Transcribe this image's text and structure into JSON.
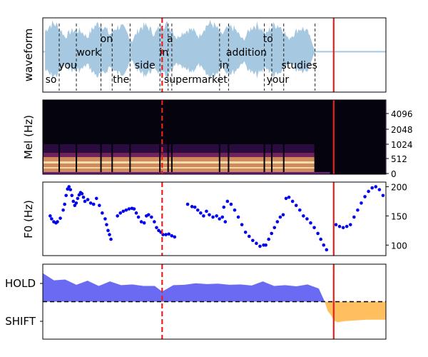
{
  "chart_data": [
    {
      "type": "area",
      "panel": "waveform",
      "ylabel": "waveform",
      "color": "#a6c8e0",
      "words": [
        {
          "word": "so",
          "row": "low",
          "start": 0.0,
          "end": 0.22
        },
        {
          "word": "you",
          "row": "mid-low",
          "start": 0.22,
          "end": 0.45
        },
        {
          "word": "work",
          "row": "mid",
          "start": 0.45,
          "end": 0.78
        },
        {
          "word": "on",
          "row": "top",
          "start": 0.78,
          "end": 0.93
        },
        {
          "word": "the",
          "row": "low",
          "start": 0.93,
          "end": 1.17
        },
        {
          "word": "side",
          "row": "mid-low",
          "start": 1.17,
          "end": 1.57
        },
        {
          "word": "in",
          "row": "mid",
          "start": 1.57,
          "end": 1.68
        },
        {
          "word": "a",
          "row": "top",
          "start": 1.68,
          "end": 1.73
        },
        {
          "word": "supermarket",
          "row": "low",
          "start": 1.73,
          "end": 2.37
        },
        {
          "word": "in",
          "row": "mid-low",
          "start": 2.37,
          "end": 2.49
        },
        {
          "word": "addition",
          "row": "mid",
          "start": 2.49,
          "end": 2.97
        },
        {
          "word": "to",
          "row": "top",
          "start": 2.97,
          "end": 3.07
        },
        {
          "word": "your",
          "row": "low",
          "start": 3.07,
          "end": 3.23
        },
        {
          "word": "studies",
          "row": "mid-low",
          "start": 3.23,
          "end": 3.65
        }
      ],
      "vlines": [
        {
          "time": 1.6,
          "color": "#e82020",
          "style": "dashed"
        },
        {
          "time": 3.9,
          "color": "#e82020",
          "style": "solid"
        }
      ],
      "xlim": [
        0,
        4.6
      ]
    },
    {
      "type": "heatmap",
      "panel": "mel-spectrogram",
      "ylabel": "Mel (Hz)",
      "yticks": [
        "0",
        "512",
        "1024",
        "2048",
        "4096"
      ],
      "colormap": "magma",
      "vlines": [
        {
          "time": 1.6,
          "color": "#e82020",
          "style": "dashed"
        },
        {
          "time": 3.9,
          "color": "#e82020",
          "style": "solid"
        }
      ],
      "xlim": [
        0,
        4.6
      ]
    },
    {
      "type": "scatter",
      "panel": "f0",
      "ylabel": "F0 (Hz)",
      "ylim": [
        82,
        208
      ],
      "yticks": [
        100,
        150,
        200
      ],
      "color": "#0000ee",
      "segments": [
        {
          "t": [
            0.1,
            0.12,
            0.15,
            0.18,
            0.2,
            0.24,
            0.28,
            0.3,
            0.32,
            0.34,
            0.36,
            0.38,
            0.4,
            0.42,
            0.44,
            0.46,
            0.48,
            0.5,
            0.52,
            0.54,
            0.56
          ],
          "f": [
            150,
            145,
            140,
            138,
            140,
            146,
            160,
            170,
            185,
            196,
            200,
            195,
            185,
            175,
            168,
            172,
            180,
            186,
            190,
            188,
            182
          ]
        },
        {
          "t": [
            0.58,
            0.62,
            0.66,
            0.7,
            0.74,
            0.78,
            0.82,
            0.86,
            0.88,
            0.9,
            0.92,
            0.94
          ],
          "f": [
            175,
            178,
            172,
            170,
            180,
            168,
            155,
            145,
            135,
            125,
            118,
            110
          ]
        },
        {
          "t": [
            1.03,
            1.07,
            1.11,
            1.15,
            1.19,
            1.23,
            1.26,
            1.29,
            1.32,
            1.36,
            1.4,
            1.43,
            1.46,
            1.5,
            1.54,
            1.57,
            1.6,
            1.63,
            1.66,
            1.7,
            1.74,
            1.78,
            1.82
          ],
          "f": [
            150,
            155,
            158,
            160,
            162,
            163,
            162,
            155,
            148,
            140,
            138,
            150,
            152,
            148,
            140,
            130,
            125,
            122,
            118,
            118,
            119,
            116,
            114
          ]
        },
        {
          "t": [
            2.0,
            2.06,
            2.1,
            2.14,
            2.18,
            2.22,
            2.26,
            2.3,
            2.35,
            2.4,
            2.44,
            2.48,
            2.52
          ],
          "f": [
            170,
            166,
            165,
            160,
            155,
            150,
            158,
            152,
            148,
            150,
            145,
            148,
            140
          ]
        },
        {
          "t": [
            2.5,
            2.55,
            2.6,
            2.65,
            2.7,
            2.75,
            2.8,
            2.85,
            2.9,
            2.95,
            3.0,
            3.05
          ],
          "f": [
            165,
            175,
            170,
            160,
            148,
            135,
            122,
            115,
            108,
            103,
            98,
            100
          ]
        },
        {
          "t": [
            3.08,
            3.12,
            3.16,
            3.2,
            3.24,
            3.28,
            3.32
          ],
          "f": [
            100,
            110,
            120,
            130,
            140,
            148,
            152
          ]
        },
        {
          "t": [
            3.36,
            3.4,
            3.45,
            3.5,
            3.55,
            3.6,
            3.65,
            3.7,
            3.75,
            3.8,
            3.84,
            3.88,
            3.92
          ],
          "f": [
            180,
            182,
            175,
            168,
            160,
            150,
            145,
            138,
            130,
            120,
            110,
            100,
            92
          ]
        },
        {
          "t": [
            4.05,
            4.1,
            4.15,
            4.2,
            4.25,
            4.3,
            4.35,
            4.4,
            4.45,
            4.5,
            4.55,
            4.6,
            4.65,
            4.7
          ],
          "f": [
            135,
            132,
            130,
            132,
            135,
            148,
            160,
            172,
            183,
            192,
            198,
            200,
            195,
            185
          ]
        }
      ],
      "vlines": [
        {
          "time": 1.6,
          "color": "#e82020",
          "style": "dashed"
        },
        {
          "time": 3.9,
          "color": "#e82020",
          "style": "solid"
        }
      ],
      "xlim": [
        0,
        4.6
      ]
    },
    {
      "type": "area",
      "panel": "hold-shift",
      "ylim": [
        -1,
        1
      ],
      "yticks": [
        "HOLD",
        "SHIFT"
      ],
      "threshold": 0.0,
      "hold_color": "#5050f0",
      "shift_color": "#ffb84d",
      "hold": {
        "t": [
          0.0,
          0.15,
          0.3,
          0.45,
          0.6,
          0.75,
          0.9,
          1.05,
          1.2,
          1.35,
          1.5,
          1.6,
          1.75,
          1.9,
          2.05,
          2.2,
          2.35,
          2.5,
          2.65,
          2.8,
          2.95,
          3.1,
          3.25,
          3.4,
          3.55,
          3.7,
          3.78
        ],
        "v": [
          0.72,
          0.6,
          0.55,
          0.48,
          0.52,
          0.45,
          0.5,
          0.47,
          0.42,
          0.45,
          0.38,
          0.3,
          0.4,
          0.48,
          0.45,
          0.5,
          0.44,
          0.48,
          0.42,
          0.46,
          0.5,
          0.45,
          0.4,
          0.44,
          0.42,
          0.38,
          0.0
        ]
      },
      "shift": {
        "t": [
          3.78,
          3.82,
          3.86,
          3.9,
          3.95,
          4.05,
          4.2,
          4.35,
          4.5,
          4.6
        ],
        "v": [
          0.0,
          -0.25,
          -0.35,
          -0.5,
          -0.55,
          -0.52,
          -0.5,
          -0.48,
          -0.48,
          -0.48
        ]
      },
      "vlines": [
        {
          "time": 1.6,
          "color": "#e82020",
          "style": "dashed"
        },
        {
          "time": 3.9,
          "color": "#e82020",
          "style": "solid"
        }
      ],
      "xlim": [
        0,
        4.6
      ]
    }
  ]
}
